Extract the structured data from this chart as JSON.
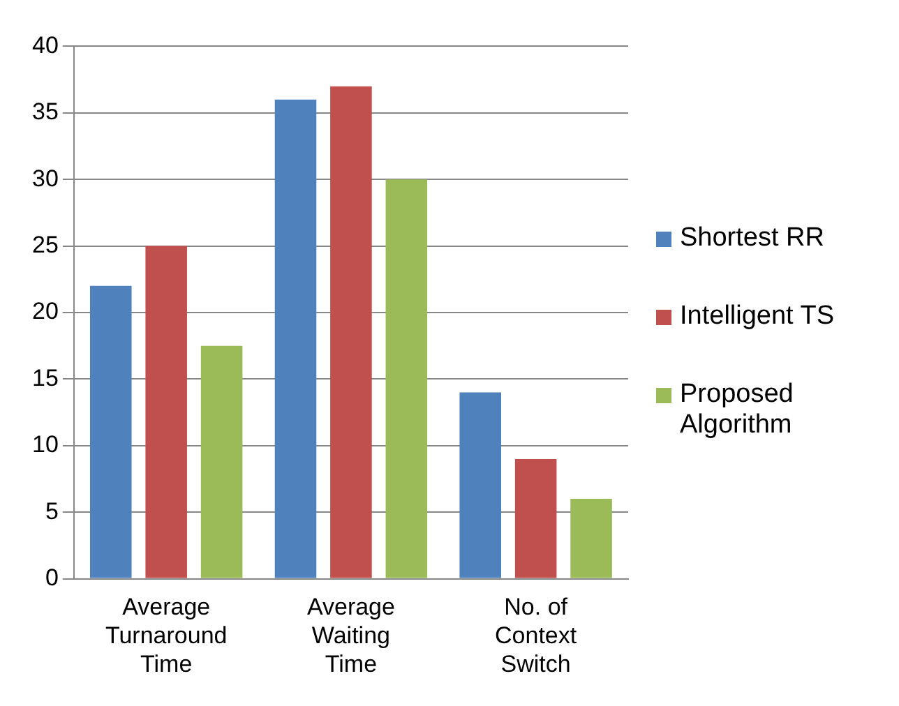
{
  "chart_data": {
    "type": "bar",
    "categories": [
      "Average Turnaround Time",
      "Average Waiting Time",
      "No. of Context Switch"
    ],
    "series": [
      {
        "name": "Shortest RR",
        "color": "#4f81bd",
        "values": [
          22,
          36,
          14
        ]
      },
      {
        "name": "Intelligent TS",
        "color": "#c0504d",
        "values": [
          25,
          37,
          9
        ]
      },
      {
        "name": "Proposed Algorithm",
        "color": "#9bbb59",
        "values": [
          17.5,
          30,
          6
        ]
      }
    ],
    "ylim": [
      0,
      40
    ],
    "yticks": [
      0,
      5,
      10,
      15,
      20,
      25,
      30,
      35,
      40
    ],
    "grid": "y",
    "legend": "right"
  }
}
